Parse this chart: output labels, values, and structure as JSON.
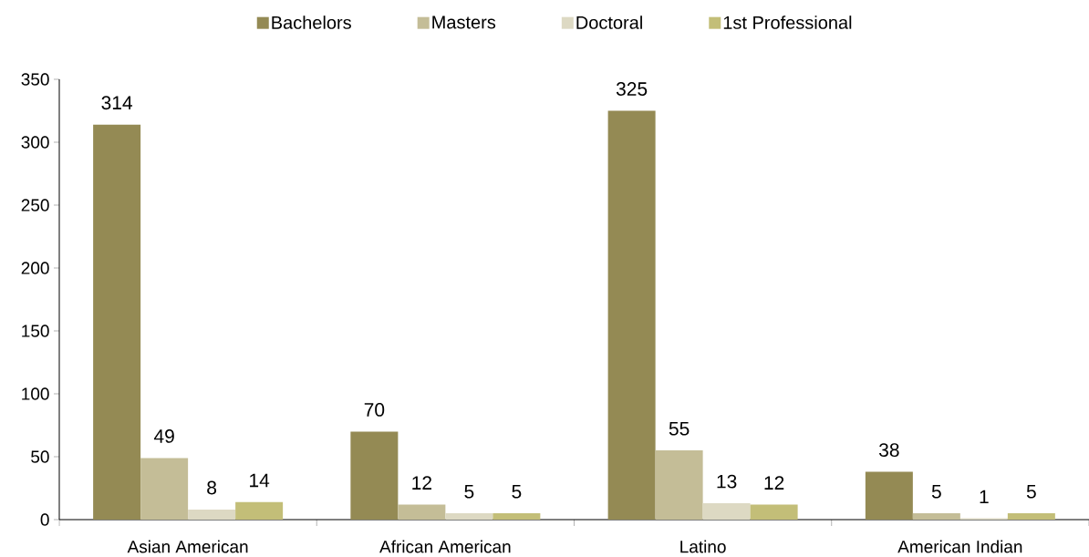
{
  "chart_data": {
    "type": "bar",
    "categories": [
      "Asian American",
      "African American",
      "Latino",
      "American Indian"
    ],
    "series": [
      {
        "name": "Bachelors",
        "color": "#948a54",
        "values": [
          314,
          70,
          325,
          38
        ]
      },
      {
        "name": "Masters",
        "color": "#c4bd97",
        "values": [
          49,
          12,
          55,
          5
        ]
      },
      {
        "name": "Doctoral",
        "color": "#ddd9c3",
        "values": [
          8,
          5,
          13,
          1
        ]
      },
      {
        "name": "1st Professional",
        "color": "#c3be78",
        "values": [
          14,
          5,
          12,
          5
        ]
      }
    ],
    "ylim": [
      0,
      350
    ],
    "yticks": [
      0,
      50,
      100,
      150,
      200,
      250,
      300,
      350
    ],
    "data_labels": true,
    "legend": "top"
  }
}
